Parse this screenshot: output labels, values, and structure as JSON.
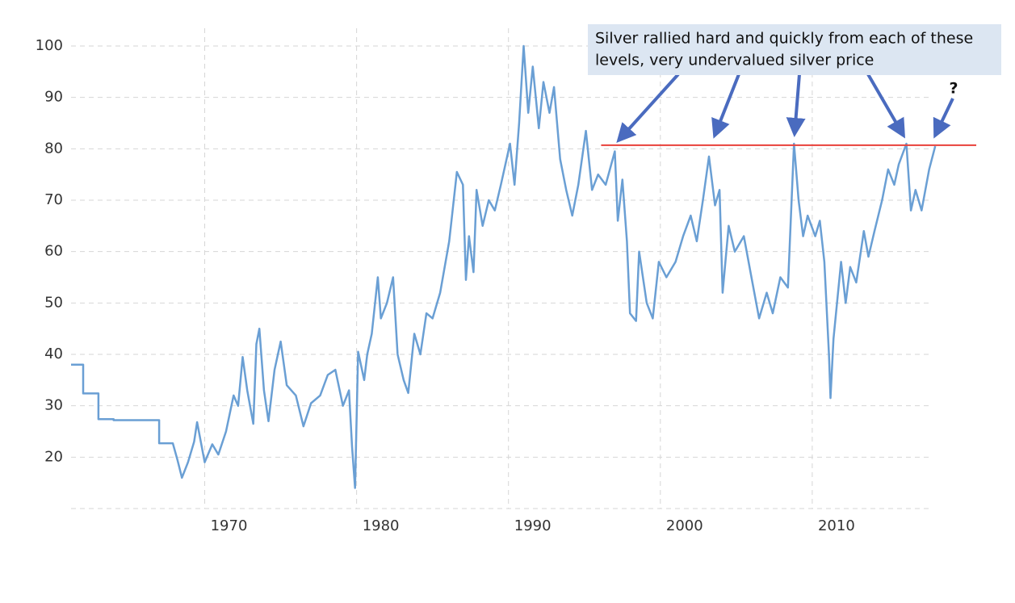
{
  "chart_data": {
    "type": "line",
    "xlim": [
      1961.2,
      2018.3
    ],
    "xticks": [
      1970,
      1980,
      1990,
      2000,
      2010
    ],
    "ylim": [
      10,
      100
    ],
    "yticks": [
      20,
      30,
      40,
      50,
      60,
      70,
      80,
      90,
      100
    ],
    "grid": true,
    "series": [
      {
        "color": "#6a9fd4",
        "x": [
          1961.2,
          1962.0,
          1962.0,
          1963.0,
          1963.0,
          1964.0,
          1964.0,
          1967.0,
          1967.0,
          1967.9,
          1968.2,
          1968.5,
          1968.9,
          1969.3,
          1969.5,
          1970.0,
          1970.5,
          1970.9,
          1971.4,
          1971.9,
          1972.2,
          1972.5,
          1972.8,
          1973.2,
          1973.4,
          1973.6,
          1973.9,
          1974.2,
          1974.6,
          1975.0,
          1975.4,
          1976.0,
          1976.5,
          1977.0,
          1977.6,
          1978.1,
          1978.6,
          1979.1,
          1979.5,
          1979.7,
          1979.9,
          1980.1,
          1980.5,
          1980.7,
          1981.0,
          1981.4,
          1981.6,
          1982.0,
          1982.4,
          1982.7,
          1983.1,
          1983.4,
          1983.8,
          1984.2,
          1984.6,
          1985.0,
          1985.5,
          1986.1,
          1986.6,
          1987.0,
          1987.2,
          1987.4,
          1987.7,
          1987.9,
          1988.3,
          1988.7,
          1989.1,
          1989.5,
          1990.1,
          1990.4,
          1990.7,
          1991.0,
          1991.3,
          1991.6,
          1992.0,
          1992.3,
          1992.7,
          1993.0,
          1993.4,
          1993.8,
          1994.2,
          1994.6,
          1995.1,
          1995.5,
          1995.9,
          1996.4,
          1997.0,
          1997.2,
          1997.5,
          1997.8,
          1998.0,
          1998.4,
          1998.6,
          1999.1,
          1999.5,
          1999.9,
          2000.4,
          2001.0,
          2001.5,
          2002.0,
          2002.4,
          2002.8,
          2003.2,
          2003.6,
          2003.9,
          2004.1,
          2004.5,
          2004.9,
          2005.5,
          2006.0,
          2006.5,
          2007.0,
          2007.4,
          2007.9,
          2008.4,
          2008.8,
          2009.1,
          2009.4,
          2009.7,
          2010.2,
          2010.5,
          2010.8,
          2011.1,
          2011.2,
          2011.4,
          2011.9,
          2012.2,
          2012.5,
          2012.9,
          2013.4,
          2013.7,
          2014.1,
          2014.6,
          2015.0,
          2015.4,
          2015.7,
          2016.2,
          2016.5,
          2016.8,
          2017.2,
          2017.7,
          2018.1
        ],
        "values": [
          38,
          38,
          32.4,
          32.4,
          27.4,
          27.4,
          27.2,
          27.2,
          22.7,
          22.7,
          19.5,
          16,
          19,
          23,
          26.8,
          19,
          22.5,
          20.5,
          25,
          32,
          30,
          39.5,
          33,
          26.5,
          42,
          45,
          33,
          27,
          37,
          42.5,
          34,
          32,
          26,
          30.5,
          32,
          36,
          37,
          30,
          33,
          22,
          14,
          40.5,
          35,
          40,
          44,
          55,
          47,
          50,
          55,
          40,
          35,
          32.5,
          44,
          40,
          48,
          47,
          52,
          62,
          75.5,
          73,
          54.5,
          63,
          56,
          72,
          65,
          70,
          68,
          73,
          81,
          73,
          85,
          100,
          87,
          96,
          84,
          93,
          87,
          92,
          78,
          72,
          67,
          73,
          83.5,
          72,
          75,
          73,
          79.5,
          66,
          74,
          62,
          48,
          46.5,
          60,
          50,
          47,
          58,
          55,
          58,
          63,
          67,
          62,
          70,
          78.5,
          69,
          72,
          52,
          65,
          60,
          63,
          55,
          47,
          52,
          48,
          55,
          53,
          81,
          70,
          63,
          67,
          63,
          66,
          58,
          40,
          31.5,
          43,
          58,
          50,
          57,
          54,
          64,
          59,
          64,
          70,
          76,
          73,
          77,
          81,
          68,
          72,
          68,
          76,
          80.5
        ]
      }
    ],
    "reference_line": {
      "value": 80.7,
      "x": [
        1996.1,
        2020.8
      ],
      "color": "#e8413a"
    },
    "annotation": [
      "Silver rallied hard and quickly from each of these",
      "levels, very undervalued silver price"
    ],
    "question_mark": "?"
  }
}
